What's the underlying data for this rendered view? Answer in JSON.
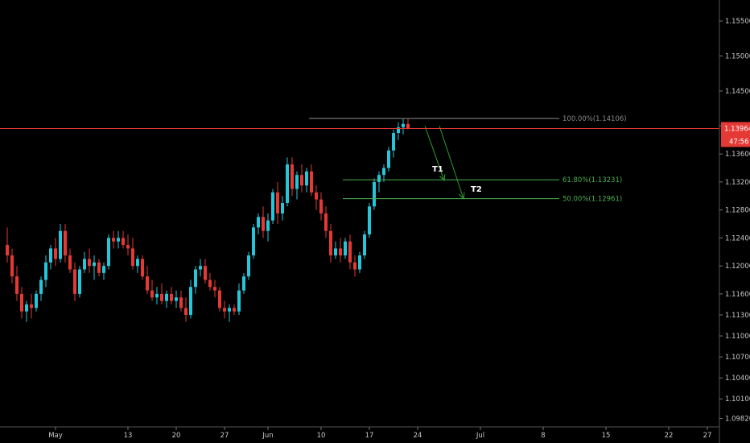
{
  "chart_data": {
    "type": "candlestick",
    "symbol_unit": "price",
    "colors": {
      "up": "#26c6da",
      "down": "#e53935",
      "fib_top": "#8a8a8a",
      "fib_mid": "#4caf50",
      "arrow": "#2e9f2e",
      "price_line": "#e53935",
      "badge_bg": "#e53935",
      "background": "#000000"
    },
    "y_axis": {
      "ylim": [
        1.097,
        1.158
      ],
      "tick_labels": [
        "1.15500",
        "1.15000",
        "1.14500",
        "1.14000",
        "1.13600",
        "1.13200",
        "1.12800",
        "1.12400",
        "1.12000",
        "1.11600",
        "1.11300",
        "1.11000",
        "1.10700",
        "1.10400",
        "1.10100",
        "1.09820"
      ],
      "tick_values": [
        1.155,
        1.15,
        1.145,
        1.14,
        1.136,
        1.132,
        1.128,
        1.124,
        1.12,
        1.116,
        1.113,
        1.11,
        1.107,
        1.104,
        1.101,
        1.0982
      ]
    },
    "x_axis": {
      "ticks": [
        {
          "label": "May",
          "bar": 10
        },
        {
          "label": "13",
          "bar": 25
        },
        {
          "label": "20",
          "bar": 35
        },
        {
          "label": "27",
          "bar": 45
        },
        {
          "label": "Jun",
          "bar": 54
        },
        {
          "label": "10",
          "bar": 65
        },
        {
          "label": "17",
          "bar": 75
        },
        {
          "label": "24",
          "bar": 85
        },
        {
          "label": "Jul",
          "bar": 98
        },
        {
          "label": "8",
          "bar": 111
        },
        {
          "label": "15",
          "bar": 124
        },
        {
          "label": "22",
          "bar": 137
        },
        {
          "label": "27",
          "bar": 145
        }
      ]
    },
    "current_price": {
      "label": "1.13964",
      "value": 1.13964,
      "countdown": "47:56"
    },
    "fib_levels": [
      {
        "label": "100.00%(1.14106)",
        "value": 1.14106,
        "color_key": "fib_top",
        "from_bar": 63
      },
      {
        "label": "61.80%(1.13231)",
        "value": 1.13231,
        "color_key": "fib_mid",
        "from_bar": 70
      },
      {
        "label": "50.00%(1.12961)",
        "value": 1.12961,
        "color_key": "fib_mid",
        "from_bar": 70
      }
    ],
    "targets": [
      {
        "label": "T1",
        "from": [
          87,
          1.14
        ],
        "to": [
          91,
          1.1322
        ],
        "label_at": [
          88.5,
          1.1335
        ]
      },
      {
        "label": "T2",
        "from": [
          90,
          1.14
        ],
        "to": [
          95,
          1.1296
        ],
        "label_at": [
          96.5,
          1.1306
        ]
      }
    ],
    "candles": [
      [
        1.123,
        1.1255,
        1.1205,
        1.1215
      ],
      [
        1.1215,
        1.1225,
        1.1175,
        1.1185
      ],
      [
        1.1185,
        1.12,
        1.115,
        1.116
      ],
      [
        1.116,
        1.117,
        1.1125,
        1.1135
      ],
      [
        1.1135,
        1.115,
        1.112,
        1.1145
      ],
      [
        1.1145,
        1.116,
        1.1125,
        1.114
      ],
      [
        1.114,
        1.1165,
        1.1135,
        1.116
      ],
      [
        1.116,
        1.1185,
        1.115,
        1.118
      ],
      [
        1.118,
        1.1215,
        1.117,
        1.1205
      ],
      [
        1.1205,
        1.123,
        1.1195,
        1.1225
      ],
      [
        1.1225,
        1.124,
        1.12,
        1.121
      ],
      [
        1.121,
        1.126,
        1.1205,
        1.125
      ],
      [
        1.125,
        1.126,
        1.1205,
        1.1215
      ],
      [
        1.1215,
        1.1225,
        1.119,
        1.1195
      ],
      [
        1.1195,
        1.1205,
        1.115,
        1.116
      ],
      [
        1.116,
        1.12,
        1.1155,
        1.1195
      ],
      [
        1.1195,
        1.122,
        1.119,
        1.121
      ],
      [
        1.121,
        1.1225,
        1.119,
        1.12
      ],
      [
        1.12,
        1.1215,
        1.118,
        1.1205
      ],
      [
        1.1205,
        1.121,
        1.1185,
        1.119
      ],
      [
        1.119,
        1.1205,
        1.118,
        1.12
      ],
      [
        1.12,
        1.1245,
        1.1195,
        1.124
      ],
      [
        1.124,
        1.125,
        1.1225,
        1.1235
      ],
      [
        1.1235,
        1.125,
        1.1225,
        1.124
      ],
      [
        1.124,
        1.125,
        1.1225,
        1.123
      ],
      [
        1.123,
        1.1245,
        1.1215,
        1.1225
      ],
      [
        1.1225,
        1.124,
        1.1195,
        1.12
      ],
      [
        1.12,
        1.1215,
        1.119,
        1.121
      ],
      [
        1.121,
        1.1215,
        1.118,
        1.1185
      ],
      [
        1.1185,
        1.12,
        1.116,
        1.1165
      ],
      [
        1.1165,
        1.118,
        1.115,
        1.1155
      ],
      [
        1.1155,
        1.117,
        1.1145,
        1.116
      ],
      [
        1.116,
        1.1175,
        1.1145,
        1.115
      ],
      [
        1.115,
        1.1165,
        1.114,
        1.116
      ],
      [
        1.116,
        1.117,
        1.1145,
        1.115
      ],
      [
        1.115,
        1.1165,
        1.114,
        1.1155
      ],
      [
        1.1155,
        1.1165,
        1.1135,
        1.114
      ],
      [
        1.114,
        1.1155,
        1.112,
        1.113
      ],
      [
        1.113,
        1.118,
        1.1125,
        1.117
      ],
      [
        1.117,
        1.12,
        1.116,
        1.1195
      ],
      [
        1.1195,
        1.121,
        1.1185,
        1.12
      ],
      [
        1.12,
        1.121,
        1.1175,
        1.118
      ],
      [
        1.118,
        1.119,
        1.1165,
        1.117
      ],
      [
        1.117,
        1.118,
        1.1155,
        1.1165
      ],
      [
        1.1165,
        1.117,
        1.1135,
        1.114
      ],
      [
        1.114,
        1.115,
        1.1125,
        1.1135
      ],
      [
        1.1135,
        1.1145,
        1.112,
        1.114
      ],
      [
        1.114,
        1.1145,
        1.113,
        1.1135
      ],
      [
        1.1135,
        1.1175,
        1.113,
        1.1165
      ],
      [
        1.1165,
        1.119,
        1.116,
        1.1185
      ],
      [
        1.1185,
        1.122,
        1.118,
        1.1215
      ],
      [
        1.1215,
        1.126,
        1.121,
        1.1255
      ],
      [
        1.1255,
        1.1275,
        1.1245,
        1.127
      ],
      [
        1.127,
        1.1285,
        1.124,
        1.125
      ],
      [
        1.125,
        1.1275,
        1.1235,
        1.1265
      ],
      [
        1.1265,
        1.131,
        1.126,
        1.1305
      ],
      [
        1.1305,
        1.132,
        1.126,
        1.1275
      ],
      [
        1.1275,
        1.13,
        1.1265,
        1.129
      ],
      [
        1.129,
        1.1355,
        1.1285,
        1.1345
      ],
      [
        1.1345,
        1.1355,
        1.13,
        1.131
      ],
      [
        1.131,
        1.1335,
        1.1295,
        1.133
      ],
      [
        1.133,
        1.1345,
        1.1305,
        1.1315
      ],
      [
        1.1315,
        1.134,
        1.1305,
        1.1335
      ],
      [
        1.1335,
        1.1345,
        1.13,
        1.1305
      ],
      [
        1.1305,
        1.1315,
        1.128,
        1.1295
      ],
      [
        1.1295,
        1.1305,
        1.1265,
        1.1275
      ],
      [
        1.1275,
        1.1285,
        1.124,
        1.125
      ],
      [
        1.125,
        1.126,
        1.1205,
        1.1215
      ],
      [
        1.1215,
        1.1235,
        1.121,
        1.1225
      ],
      [
        1.1225,
        1.124,
        1.1205,
        1.1215
      ],
      [
        1.1215,
        1.124,
        1.121,
        1.1235
      ],
      [
        1.1235,
        1.1245,
        1.1195,
        1.1205
      ],
      [
        1.1205,
        1.1215,
        1.1185,
        1.1195
      ],
      [
        1.1195,
        1.122,
        1.119,
        1.1215
      ],
      [
        1.1215,
        1.125,
        1.121,
        1.1245
      ],
      [
        1.1245,
        1.129,
        1.124,
        1.1285
      ],
      [
        1.1285,
        1.1325,
        1.128,
        1.132
      ],
      [
        1.132,
        1.1335,
        1.1305,
        1.133
      ],
      [
        1.133,
        1.1345,
        1.132,
        1.134
      ],
      [
        1.134,
        1.137,
        1.1335,
        1.1365
      ],
      [
        1.1365,
        1.1395,
        1.1355,
        1.139
      ],
      [
        1.139,
        1.1405,
        1.138,
        1.1398
      ],
      [
        1.1398,
        1.141,
        1.1388,
        1.1403
      ],
      [
        1.1403,
        1.1411,
        1.1395,
        1.1396
      ]
    ]
  }
}
